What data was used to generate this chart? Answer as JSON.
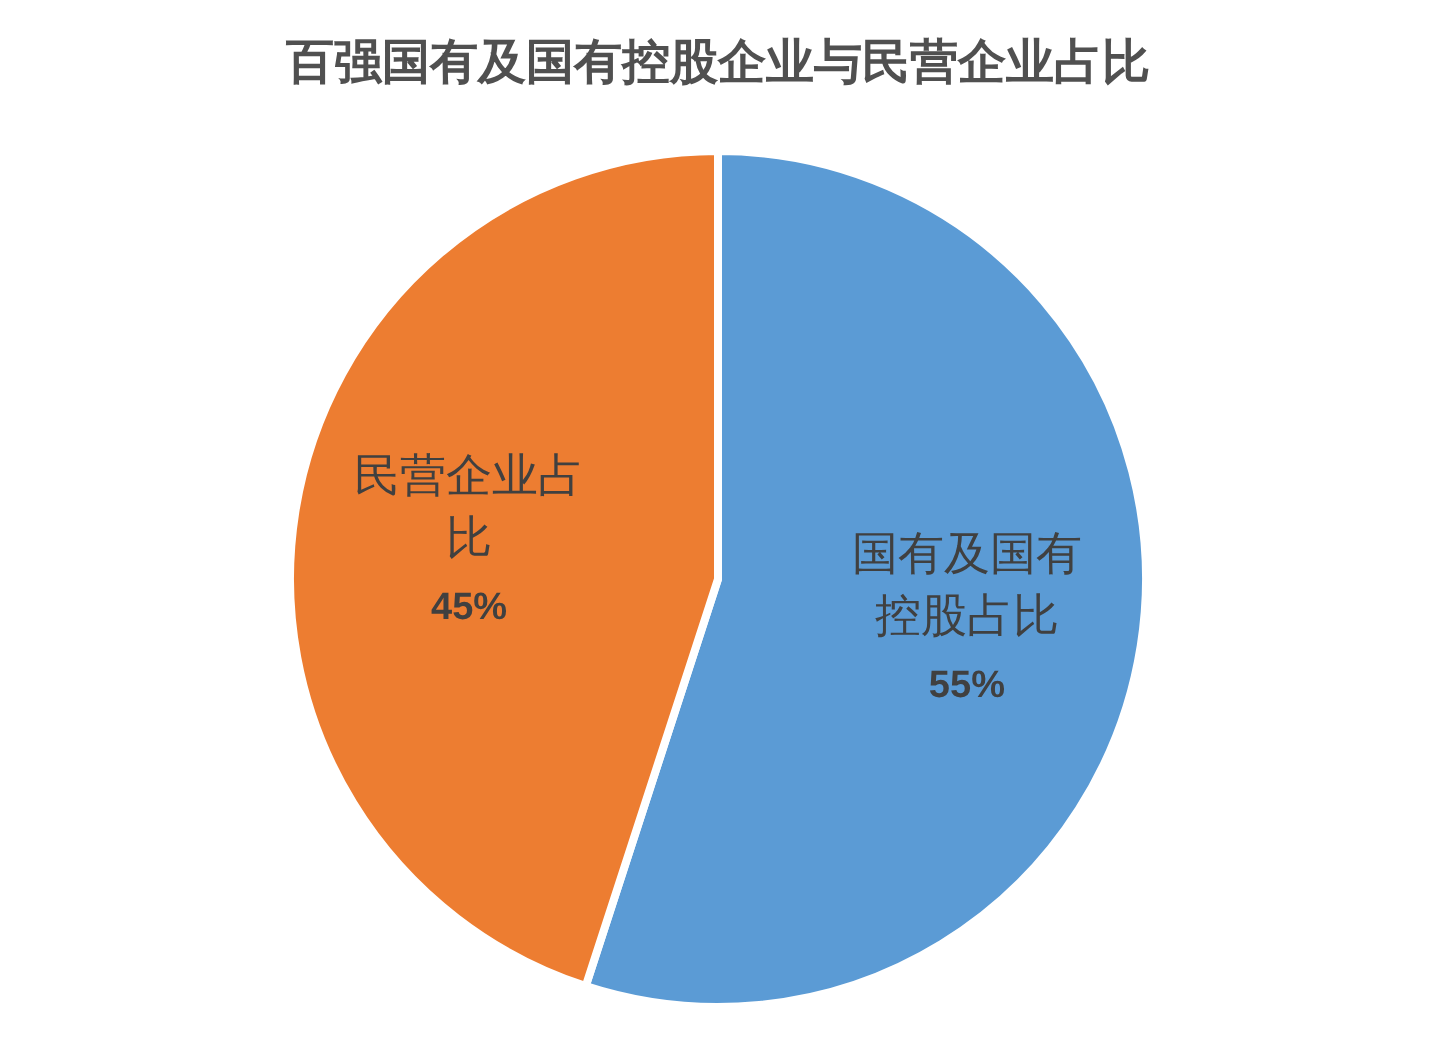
{
  "chart_data": {
    "type": "pie",
    "title": "百强国有及国有控股企业与民营企业占比",
    "categories": [
      "国有及国有控股占比",
      "民营企业占比"
    ],
    "values": [
      55,
      45
    ],
    "colors": [
      "#5b9bd5",
      "#ed7d31"
    ],
    "value_labels": [
      "55%",
      "45%"
    ],
    "legend": false
  }
}
